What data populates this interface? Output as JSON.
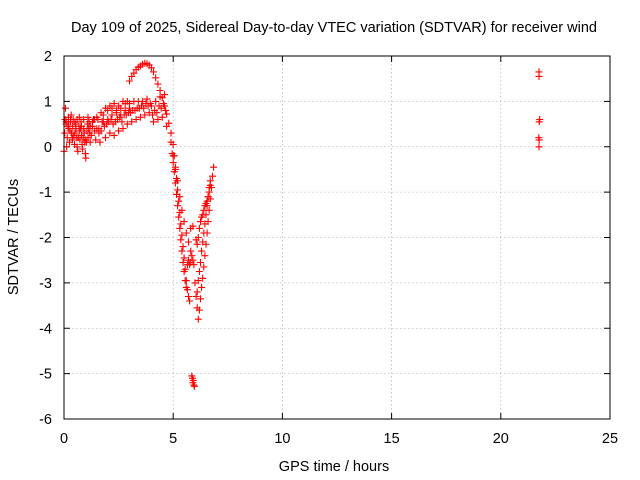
{
  "chart_data": {
    "type": "scatter",
    "title": "Day 109 of 2025, Sidereal Day-to-day VTEC variation (SDTVAR) for receiver wind",
    "xlabel": "GPS time / hours",
    "ylabel": "SDTVAR / TECUs",
    "xlim": [
      0,
      25
    ],
    "ylim": [
      -6,
      2
    ],
    "xticks": [
      0,
      5,
      10,
      15,
      20,
      25
    ],
    "yticks": [
      -6,
      -5,
      -4,
      -3,
      -2,
      -1,
      0,
      1,
      2
    ],
    "grid": true,
    "legend": "none",
    "marker": "+",
    "color": "#ff0000",
    "series": [
      {
        "points": [
          [
            0.0,
            -0.1
          ],
          [
            0.03,
            0.3
          ],
          [
            0.05,
            0.6
          ],
          [
            0.07,
            0.85
          ],
          [
            0.1,
            0.5
          ],
          [
            0.12,
            0.0
          ],
          [
            0.15,
            0.2
          ],
          [
            0.18,
            0.45
          ],
          [
            0.2,
            0.65
          ],
          [
            0.22,
            0.4
          ],
          [
            0.25,
            0.1
          ],
          [
            0.28,
            0.35
          ],
          [
            0.3,
            0.55
          ],
          [
            0.33,
            0.7
          ],
          [
            0.35,
            0.3
          ],
          [
            0.38,
            0.15
          ],
          [
            0.4,
            0.45
          ],
          [
            0.42,
            0.6
          ],
          [
            0.45,
            0.25
          ],
          [
            0.48,
            0.05
          ],
          [
            0.5,
            0.3
          ],
          [
            0.53,
            0.5
          ],
          [
            0.55,
            0.4
          ],
          [
            0.58,
            0.2
          ],
          [
            0.6,
            0.0
          ],
          [
            0.63,
            -0.1
          ],
          [
            0.65,
            0.2
          ],
          [
            0.68,
            0.45
          ],
          [
            0.7,
            0.35
          ],
          [
            0.73,
            0.15
          ],
          [
            0.75,
            0.4
          ],
          [
            0.78,
            0.55
          ],
          [
            0.8,
            0.25
          ],
          [
            0.83,
            0.05
          ],
          [
            0.85,
            -0.05
          ],
          [
            0.88,
            0.2
          ],
          [
            0.9,
            0.4
          ],
          [
            0.93,
            0.3
          ],
          [
            0.95,
            0.1
          ],
          [
            0.98,
            -0.15
          ],
          [
            1.0,
            -0.25
          ],
          [
            1.03,
            0.1
          ],
          [
            1.05,
            0.35
          ],
          [
            1.08,
            0.5
          ],
          [
            1.1,
            0.2
          ],
          [
            1.13,
            0.4
          ],
          [
            1.15,
            0.55
          ],
          [
            1.18,
            0.3
          ],
          [
            1.2,
            0.1
          ],
          [
            1.25,
            0.25
          ],
          [
            1.3,
            0.45
          ],
          [
            1.35,
            0.6
          ],
          [
            1.4,
            0.35
          ],
          [
            1.45,
            0.15
          ],
          [
            1.5,
            0.4
          ],
          [
            1.55,
            0.6
          ],
          [
            1.6,
            0.3
          ],
          [
            1.65,
            0.1
          ],
          [
            1.7,
            0.35
          ],
          [
            1.75,
            0.55
          ],
          [
            1.8,
            0.7
          ],
          [
            1.85,
            0.45
          ],
          [
            1.9,
            0.2
          ],
          [
            1.95,
            0.5
          ],
          [
            2.0,
            0.8
          ],
          [
            2.05,
            0.55
          ],
          [
            2.1,
            0.3
          ],
          [
            2.15,
            0.6
          ],
          [
            2.2,
            0.85
          ],
          [
            2.25,
            0.5
          ],
          [
            2.3,
            0.25
          ],
          [
            2.35,
            0.55
          ],
          [
            2.4,
            0.8
          ],
          [
            2.45,
            0.6
          ],
          [
            2.5,
            0.35
          ],
          [
            2.55,
            0.65
          ],
          [
            2.6,
            0.85
          ],
          [
            2.65,
            0.55
          ],
          [
            2.7,
            0.4
          ],
          [
            2.75,
            0.7
          ],
          [
            2.8,
            0.95
          ],
          [
            2.85,
            0.7
          ],
          [
            2.9,
            0.5
          ],
          [
            2.95,
            0.75
          ],
          [
            3.0,
            0.95
          ],
          [
            3.05,
            0.75
          ],
          [
            3.1,
            0.55
          ],
          [
            3.15,
            0.8
          ],
          [
            3.2,
            1.0
          ],
          [
            3.25,
            0.8
          ],
          [
            3.3,
            0.6
          ],
          [
            3.35,
            0.85
          ],
          [
            3.4,
            1.0
          ],
          [
            3.45,
            0.85
          ],
          [
            3.5,
            0.65
          ],
          [
            3.55,
            0.9
          ],
          [
            3.6,
            1.0
          ],
          [
            3.65,
            0.85
          ],
          [
            3.7,
            0.7
          ],
          [
            3.75,
            0.95
          ],
          [
            3.8,
            1.05
          ],
          [
            3.85,
            0.9
          ],
          [
            3.9,
            0.75
          ],
          [
            3.95,
            0.95
          ],
          [
            4.0,
            0.9
          ],
          [
            4.05,
            0.7
          ],
          [
            4.1,
            0.55
          ],
          [
            4.15,
            0.8
          ],
          [
            4.2,
            1.0
          ],
          [
            4.25,
            0.75
          ],
          [
            4.3,
            0.6
          ],
          [
            4.35,
            0.9
          ],
          [
            4.4,
            1.1
          ],
          [
            4.45,
            0.85
          ],
          [
            4.5,
            0.65
          ],
          [
            4.55,
            0.95
          ],
          [
            4.6,
            1.15
          ],
          [
            4.65,
            0.8
          ],
          [
            4.7,
            0.45
          ],
          [
            0.2,
            0.55
          ],
          [
            0.4,
            0.2
          ],
          [
            0.6,
            0.6
          ],
          [
            0.8,
            0.45
          ],
          [
            1.0,
            0.15
          ],
          [
            1.2,
            0.45
          ],
          [
            1.4,
            0.6
          ],
          [
            1.6,
            0.4
          ],
          [
            1.8,
            0.55
          ],
          [
            2.0,
            0.6
          ],
          [
            2.2,
            0.7
          ],
          [
            2.4,
            0.75
          ],
          [
            2.6,
            0.7
          ],
          [
            2.8,
            0.8
          ],
          [
            3.0,
            0.85
          ],
          [
            0.1,
            0.55
          ],
          [
            0.3,
            0.6
          ],
          [
            0.5,
            0.55
          ],
          [
            0.7,
            0.65
          ],
          [
            0.9,
            0.6
          ],
          [
            1.1,
            0.65
          ],
          [
            1.3,
            0.55
          ],
          [
            1.5,
            0.65
          ],
          [
            1.7,
            0.75
          ],
          [
            1.9,
            0.85
          ],
          [
            2.1,
            0.9
          ],
          [
            2.3,
            0.95
          ],
          [
            2.5,
            0.9
          ],
          [
            2.7,
            1.0
          ],
          [
            2.9,
            1.0
          ],
          [
            3.0,
            1.45
          ],
          [
            3.1,
            1.55
          ],
          [
            3.2,
            1.62
          ],
          [
            3.3,
            1.7
          ],
          [
            3.4,
            1.75
          ],
          [
            3.5,
            1.78
          ],
          [
            3.6,
            1.82
          ],
          [
            3.7,
            1.84
          ],
          [
            3.8,
            1.83
          ],
          [
            3.9,
            1.8
          ],
          [
            4.0,
            1.74
          ],
          [
            4.1,
            1.65
          ],
          [
            4.2,
            1.52
          ],
          [
            4.3,
            1.38
          ],
          [
            4.4,
            1.24
          ],
          [
            4.5,
            1.08
          ],
          [
            4.6,
            0.9
          ],
          [
            4.7,
            0.72
          ],
          [
            4.8,
            0.52
          ],
          [
            4.9,
            0.3
          ],
          [
            5.0,
            0.05
          ],
          [
            5.05,
            -0.2
          ],
          [
            5.1,
            -0.45
          ],
          [
            5.15,
            -0.7
          ],
          [
            5.2,
            -0.95
          ],
          [
            5.25,
            -1.2
          ],
          [
            5.3,
            -1.45
          ],
          [
            5.35,
            -1.7
          ],
          [
            5.4,
            -1.95
          ],
          [
            5.45,
            -2.2
          ],
          [
            5.5,
            -2.45
          ],
          [
            5.55,
            -2.7
          ],
          [
            5.6,
            -2.95
          ],
          [
            5.65,
            -3.15
          ],
          [
            5.7,
            -3.3
          ],
          [
            5.75,
            -3.4
          ],
          [
            4.9,
            0.1
          ],
          [
            4.95,
            -0.15
          ],
          [
            5.0,
            -0.35
          ],
          [
            5.05,
            -0.55
          ],
          [
            5.1,
            -0.8
          ],
          [
            5.15,
            -1.05
          ],
          [
            5.2,
            -1.3
          ],
          [
            5.25,
            -1.55
          ],
          [
            5.3,
            -1.8
          ],
          [
            5.35,
            -2.05
          ],
          [
            5.4,
            -2.3
          ],
          [
            5.45,
            -2.55
          ],
          [
            5.5,
            -2.75
          ],
          [
            5.55,
            -2.95
          ],
          [
            5.6,
            -3.1
          ],
          [
            5.65,
            -2.6
          ],
          [
            5.7,
            -2.5
          ],
          [
            5.75,
            -2.6
          ],
          [
            5.8,
            -2.55
          ],
          [
            5.85,
            -2.4
          ],
          [
            5.0,
            -0.2
          ],
          [
            5.1,
            -0.5
          ],
          [
            5.2,
            -0.75
          ],
          [
            5.3,
            -1.1
          ],
          [
            5.4,
            -1.4
          ],
          [
            5.5,
            -1.65
          ],
          [
            5.6,
            -1.9
          ],
          [
            5.7,
            -2.1
          ],
          [
            5.8,
            -2.3
          ],
          [
            5.9,
            -2.5
          ],
          [
            5.95,
            -2.6
          ],
          [
            5.8,
            -1.8
          ],
          [
            5.9,
            -1.75
          ],
          [
            5.85,
            -5.05
          ],
          [
            5.88,
            -5.1
          ],
          [
            5.9,
            -5.2
          ],
          [
            5.92,
            -5.15
          ],
          [
            5.95,
            -5.25
          ],
          [
            5.97,
            -5.28
          ],
          [
            6.0,
            -3.0
          ],
          [
            6.05,
            -3.3
          ],
          [
            6.1,
            -3.55
          ],
          [
            6.15,
            -3.8
          ],
          [
            6.2,
            -3.6
          ],
          [
            6.25,
            -3.35
          ],
          [
            6.3,
            -3.1
          ],
          [
            6.35,
            -2.9
          ],
          [
            6.4,
            -2.65
          ],
          [
            6.45,
            -2.4
          ],
          [
            6.5,
            -2.15
          ],
          [
            6.55,
            -1.9
          ],
          [
            6.6,
            -1.65
          ],
          [
            6.65,
            -1.4
          ],
          [
            6.7,
            -1.15
          ],
          [
            6.75,
            -0.9
          ],
          [
            6.8,
            -0.65
          ],
          [
            6.85,
            -0.45
          ],
          [
            6.1,
            -3.2
          ],
          [
            6.15,
            -2.95
          ],
          [
            6.2,
            -2.75
          ],
          [
            6.25,
            -2.55
          ],
          [
            6.3,
            -2.3
          ],
          [
            6.35,
            -2.1
          ],
          [
            6.4,
            -1.9
          ],
          [
            6.45,
            -1.7
          ],
          [
            6.5,
            -1.5
          ],
          [
            6.55,
            -1.3
          ],
          [
            6.6,
            -1.1
          ],
          [
            6.65,
            -0.9
          ],
          [
            6.7,
            -0.75
          ],
          [
            6.05,
            -2.05
          ],
          [
            6.1,
            -2.15
          ],
          [
            6.15,
            -2.0
          ],
          [
            6.2,
            -1.8
          ],
          [
            6.25,
            -1.65
          ],
          [
            6.3,
            -1.55
          ],
          [
            6.35,
            -1.5
          ],
          [
            6.4,
            -1.4
          ],
          [
            6.45,
            -1.3
          ],
          [
            6.5,
            -1.25
          ],
          [
            6.55,
            -1.2
          ],
          [
            6.6,
            -1.1
          ],
          [
            6.65,
            -1.0
          ],
          [
            6.7,
            -0.85
          ],
          [
            21.75,
            1.65
          ],
          [
            21.75,
            1.55
          ],
          [
            21.78,
            0.6
          ],
          [
            21.76,
            0.55
          ],
          [
            21.74,
            0.2
          ],
          [
            21.76,
            0.15
          ],
          [
            21.75,
            0.0
          ]
        ]
      }
    ]
  }
}
